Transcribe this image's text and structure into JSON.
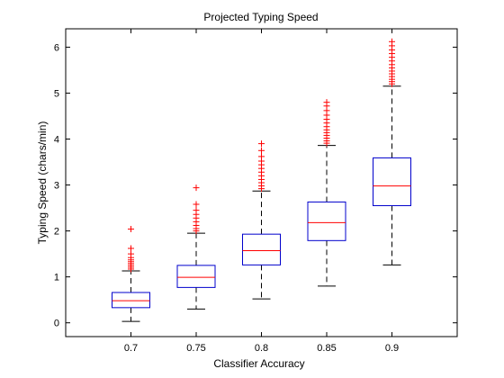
{
  "chart_data": {
    "type": "box",
    "title": "Projected Typing Speed",
    "xlabel": "Classifier Accuracy",
    "ylabel": "Typing Speed (chars/min)",
    "categories": [
      "0.7",
      "0.75",
      "0.8",
      "0.85",
      "0.9"
    ],
    "ylim": [
      -0.3,
      6.4
    ],
    "yticks": [
      0,
      1,
      2,
      3,
      4,
      5,
      6
    ],
    "grid": false,
    "colors": {
      "box": "#0000cc",
      "median": "#ff0000",
      "whisker": "#000000",
      "outlier": "#ff0000"
    },
    "boxes": [
      {
        "category": "0.7",
        "whisker_low": 0.03,
        "q1": 0.33,
        "median": 0.48,
        "q3": 0.66,
        "whisker_high": 1.13,
        "outliers": [
          1.17,
          1.21,
          1.25,
          1.29,
          1.33,
          1.37,
          1.42,
          1.5,
          1.62,
          2.04
        ]
      },
      {
        "category": "0.75",
        "whisker_low": 0.3,
        "q1": 0.77,
        "median": 0.99,
        "q3": 1.25,
        "whisker_high": 1.95,
        "outliers": [
          2.0,
          2.05,
          2.12,
          2.2,
          2.28,
          2.36,
          2.45,
          2.58,
          2.94
        ]
      },
      {
        "category": "0.8",
        "whisker_low": 0.52,
        "q1": 1.26,
        "median": 1.57,
        "q3": 1.93,
        "whisker_high": 2.87,
        "outliers": [
          2.92,
          2.98,
          3.05,
          3.12,
          3.2,
          3.28,
          3.36,
          3.44,
          3.52,
          3.62,
          3.75,
          3.9
        ]
      },
      {
        "category": "0.85",
        "whisker_low": 0.8,
        "q1": 1.79,
        "median": 2.18,
        "q3": 2.63,
        "whisker_high": 3.86,
        "outliers": [
          3.91,
          3.96,
          4.02,
          4.08,
          4.14,
          4.2,
          4.27,
          4.35,
          4.43,
          4.52,
          4.62,
          4.72,
          4.8
        ]
      },
      {
        "category": "0.9",
        "whisker_low": 1.26,
        "q1": 2.55,
        "median": 2.98,
        "q3": 3.59,
        "whisker_high": 5.15,
        "outliers": [
          5.2,
          5.25,
          5.3,
          5.36,
          5.42,
          5.48,
          5.55,
          5.62,
          5.7,
          5.78,
          5.86,
          5.94,
          6.03,
          6.12
        ]
      }
    ]
  }
}
